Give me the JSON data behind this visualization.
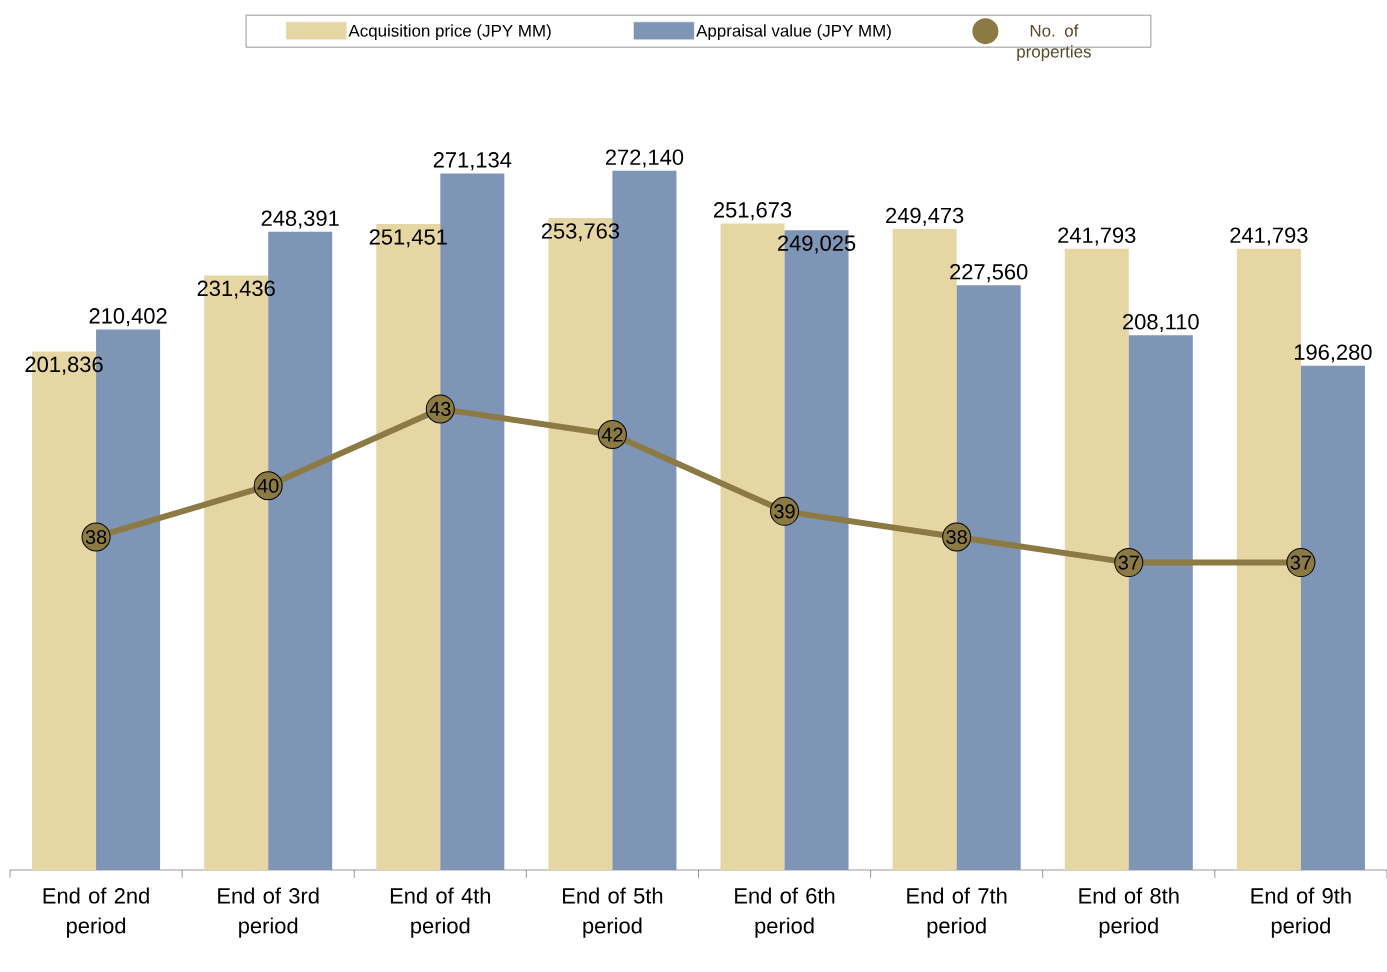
{
  "chart_data": {
    "type": "bar",
    "categories": [
      "End of 2nd period",
      "End of 3rd period",
      "End of 4th period",
      "End of 5th period",
      "End of 6th period",
      "End of 7th period",
      "End of 8th period",
      "End of 9th period"
    ],
    "series": [
      {
        "name": "Acquisition price (JPY MM)",
        "color": "#e6d6a4",
        "values": [
          201836,
          231436,
          251451,
          253763,
          251673,
          249473,
          241793,
          241793
        ],
        "value_labels": [
          "201,836",
          "231,436",
          "251,451",
          "253,763",
          "251,673",
          "249,473",
          "241,793",
          "241,793"
        ]
      },
      {
        "name": "Appraisal value (JPY MM)",
        "color": "#7f95b5",
        "values": [
          210402,
          248391,
          271134,
          272140,
          249025,
          227560,
          208110,
          196280
        ],
        "value_labels": [
          "210,402",
          "248,391",
          "271,134",
          "272,140",
          "249,025",
          "227,560",
          "208,110",
          "196,280"
        ]
      },
      {
        "name": "No. of properties",
        "type": "line",
        "axis": "y2",
        "color": "#8c7a44",
        "values": [
          38,
          40,
          43,
          42,
          39,
          38,
          37,
          37
        ],
        "value_labels": [
          "38",
          "40",
          "43",
          "42",
          "39",
          "38",
          "37",
          "37"
        ]
      }
    ],
    "data_labels": true,
    "legend": "top",
    "tick_labels": "x",
    "marker": "circle"
  }
}
